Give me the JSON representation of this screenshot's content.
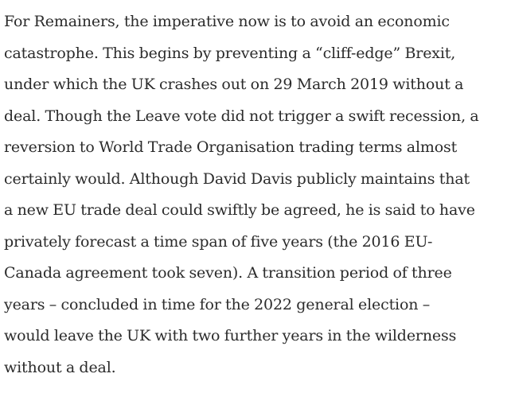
{
  "article": {
    "lines": [
      "For Remainers, the imperative now is to avoid an economic",
      "catastrophe. This begins by preventing a “cliff-edge” Brexit,",
      "under which the UK crashes out on 29 March 2019 without a",
      "deal. Though the Leave vote did not trigger a swift recession, a",
      "reversion to World Trade Organisation trading terms almost",
      "certainly would. Although David Davis publicly maintains that",
      "a new EU trade deal could swiftly be agreed, he is said to have",
      "privately forecast a time span of five years (the 2016 EU-",
      "Canada agreement took seven). A transition period of three",
      "years – concluded in time for the 2022 general election –",
      "would leave the UK with two further years in the wilderness",
      "without a deal."
    ]
  }
}
